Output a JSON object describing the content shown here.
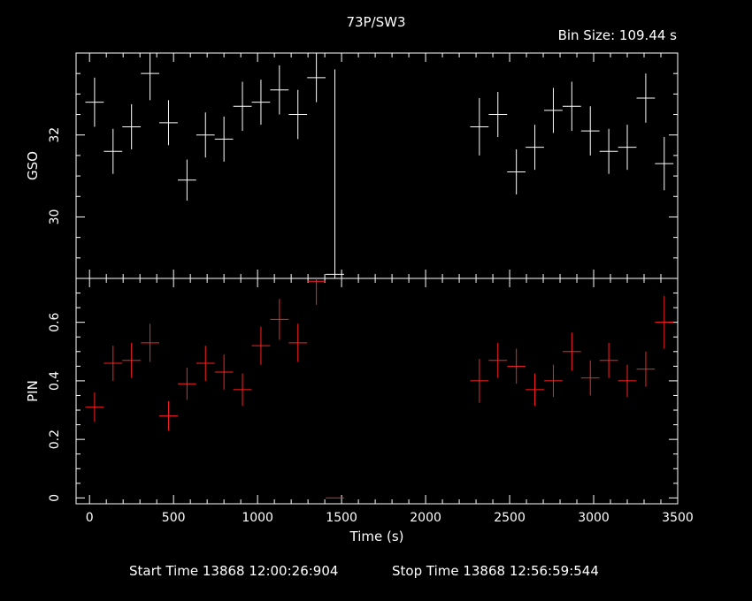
{
  "header": {
    "title": "73P/SW3",
    "bin_size": "Bin Size:  109.44  s"
  },
  "footer": {
    "start_time": "Start Time 13868 12:00:26:904",
    "stop_time": "Stop Time 13868 12:56:59:544"
  },
  "colors": {
    "background": "#000000",
    "gso": "#ffffff",
    "pin": "#ff2020",
    "axes": "#ffffff"
  },
  "chart_data": [
    {
      "type": "scatter",
      "panel": "top",
      "ylabel": "GSO",
      "xlim": [
        -80,
        3500
      ],
      "ylim": [
        28.5,
        34.0
      ],
      "yticks": [
        30,
        32
      ],
      "xerr": 54.72,
      "series": [
        {
          "name": "",
          "color": "#ffffff",
          "points": [
            {
              "x": 30,
              "y": 32.8,
              "err": 0.6
            },
            {
              "x": 140,
              "y": 31.6,
              "err": 0.55
            },
            {
              "x": 250,
              "y": 32.2,
              "err": 0.55
            },
            {
              "x": 360,
              "y": 33.5,
              "err": 0.65
            },
            {
              "x": 470,
              "y": 32.3,
              "err": 0.55
            },
            {
              "x": 580,
              "y": 30.9,
              "err": 0.5
            },
            {
              "x": 690,
              "y": 32.0,
              "err": 0.55
            },
            {
              "x": 800,
              "y": 31.9,
              "err": 0.55
            },
            {
              "x": 910,
              "y": 32.7,
              "err": 0.6
            },
            {
              "x": 1020,
              "y": 32.8,
              "err": 0.55
            },
            {
              "x": 1130,
              "y": 33.1,
              "err": 0.6
            },
            {
              "x": 1240,
              "y": 32.5,
              "err": 0.6
            },
            {
              "x": 1350,
              "y": 33.4,
              "err": 0.6
            },
            {
              "x": 1460,
              "y": 28.6,
              "err": 5.0
            },
            {
              "x": 2320,
              "y": 32.2,
              "err": 0.7
            },
            {
              "x": 2430,
              "y": 32.5,
              "err": 0.55
            },
            {
              "x": 2540,
              "y": 31.1,
              "err": 0.55
            },
            {
              "x": 2650,
              "y": 31.7,
              "err": 0.55
            },
            {
              "x": 2760,
              "y": 32.6,
              "err": 0.55
            },
            {
              "x": 2870,
              "y": 32.7,
              "err": 0.6
            },
            {
              "x": 2980,
              "y": 32.1,
              "err": 0.6
            },
            {
              "x": 3090,
              "y": 31.6,
              "err": 0.55
            },
            {
              "x": 3200,
              "y": 31.7,
              "err": 0.55
            },
            {
              "x": 3310,
              "y": 32.9,
              "err": 0.6
            },
            {
              "x": 3420,
              "y": 31.3,
              "err": 0.65
            }
          ]
        }
      ]
    },
    {
      "type": "scatter",
      "panel": "bottom",
      "ylabel": "PIN",
      "xlabel": "Time (s)",
      "xlim": [
        -80,
        3500
      ],
      "ylim": [
        -0.02,
        0.75
      ],
      "yticks": [
        0,
        0.2,
        0.4,
        0.6
      ],
      "xticks": [
        0,
        500,
        1000,
        1500,
        2000,
        2500,
        3000,
        3500
      ],
      "xerr": 54.72,
      "series": [
        {
          "name": "",
          "color": "#ff2020",
          "points": [
            {
              "x": 30,
              "y": 0.31,
              "err": 0.05
            },
            {
              "x": 140,
              "y": 0.46,
              "err": 0.06
            },
            {
              "x": 250,
              "y": 0.47,
              "err": 0.06
            },
            {
              "x": 360,
              "y": 0.53,
              "err": 0.065
            },
            {
              "x": 470,
              "y": 0.28,
              "err": 0.05
            },
            {
              "x": 580,
              "y": 0.39,
              "err": 0.055
            },
            {
              "x": 690,
              "y": 0.46,
              "err": 0.06
            },
            {
              "x": 800,
              "y": 0.43,
              "err": 0.06
            },
            {
              "x": 910,
              "y": 0.37,
              "err": 0.055
            },
            {
              "x": 1020,
              "y": 0.52,
              "err": 0.065
            },
            {
              "x": 1130,
              "y": 0.61,
              "err": 0.07
            },
            {
              "x": 1240,
              "y": 0.53,
              "err": 0.065
            },
            {
              "x": 1350,
              "y": 0.74,
              "err": 0.08
            },
            {
              "x": 1460,
              "y": 0.0,
              "err": 0.0
            },
            {
              "x": 2320,
              "y": 0.4,
              "err": 0.075
            },
            {
              "x": 2430,
              "y": 0.47,
              "err": 0.06
            },
            {
              "x": 2540,
              "y": 0.45,
              "err": 0.06
            },
            {
              "x": 2650,
              "y": 0.37,
              "err": 0.055
            },
            {
              "x": 2760,
              "y": 0.4,
              "err": 0.055
            },
            {
              "x": 2870,
              "y": 0.5,
              "err": 0.065
            },
            {
              "x": 2980,
              "y": 0.41,
              "err": 0.06
            },
            {
              "x": 3090,
              "y": 0.47,
              "err": 0.06
            },
            {
              "x": 3200,
              "y": 0.4,
              "err": 0.055
            },
            {
              "x": 3310,
              "y": 0.44,
              "err": 0.06
            },
            {
              "x": 3420,
              "y": 0.6,
              "err": 0.09
            }
          ]
        }
      ]
    }
  ]
}
